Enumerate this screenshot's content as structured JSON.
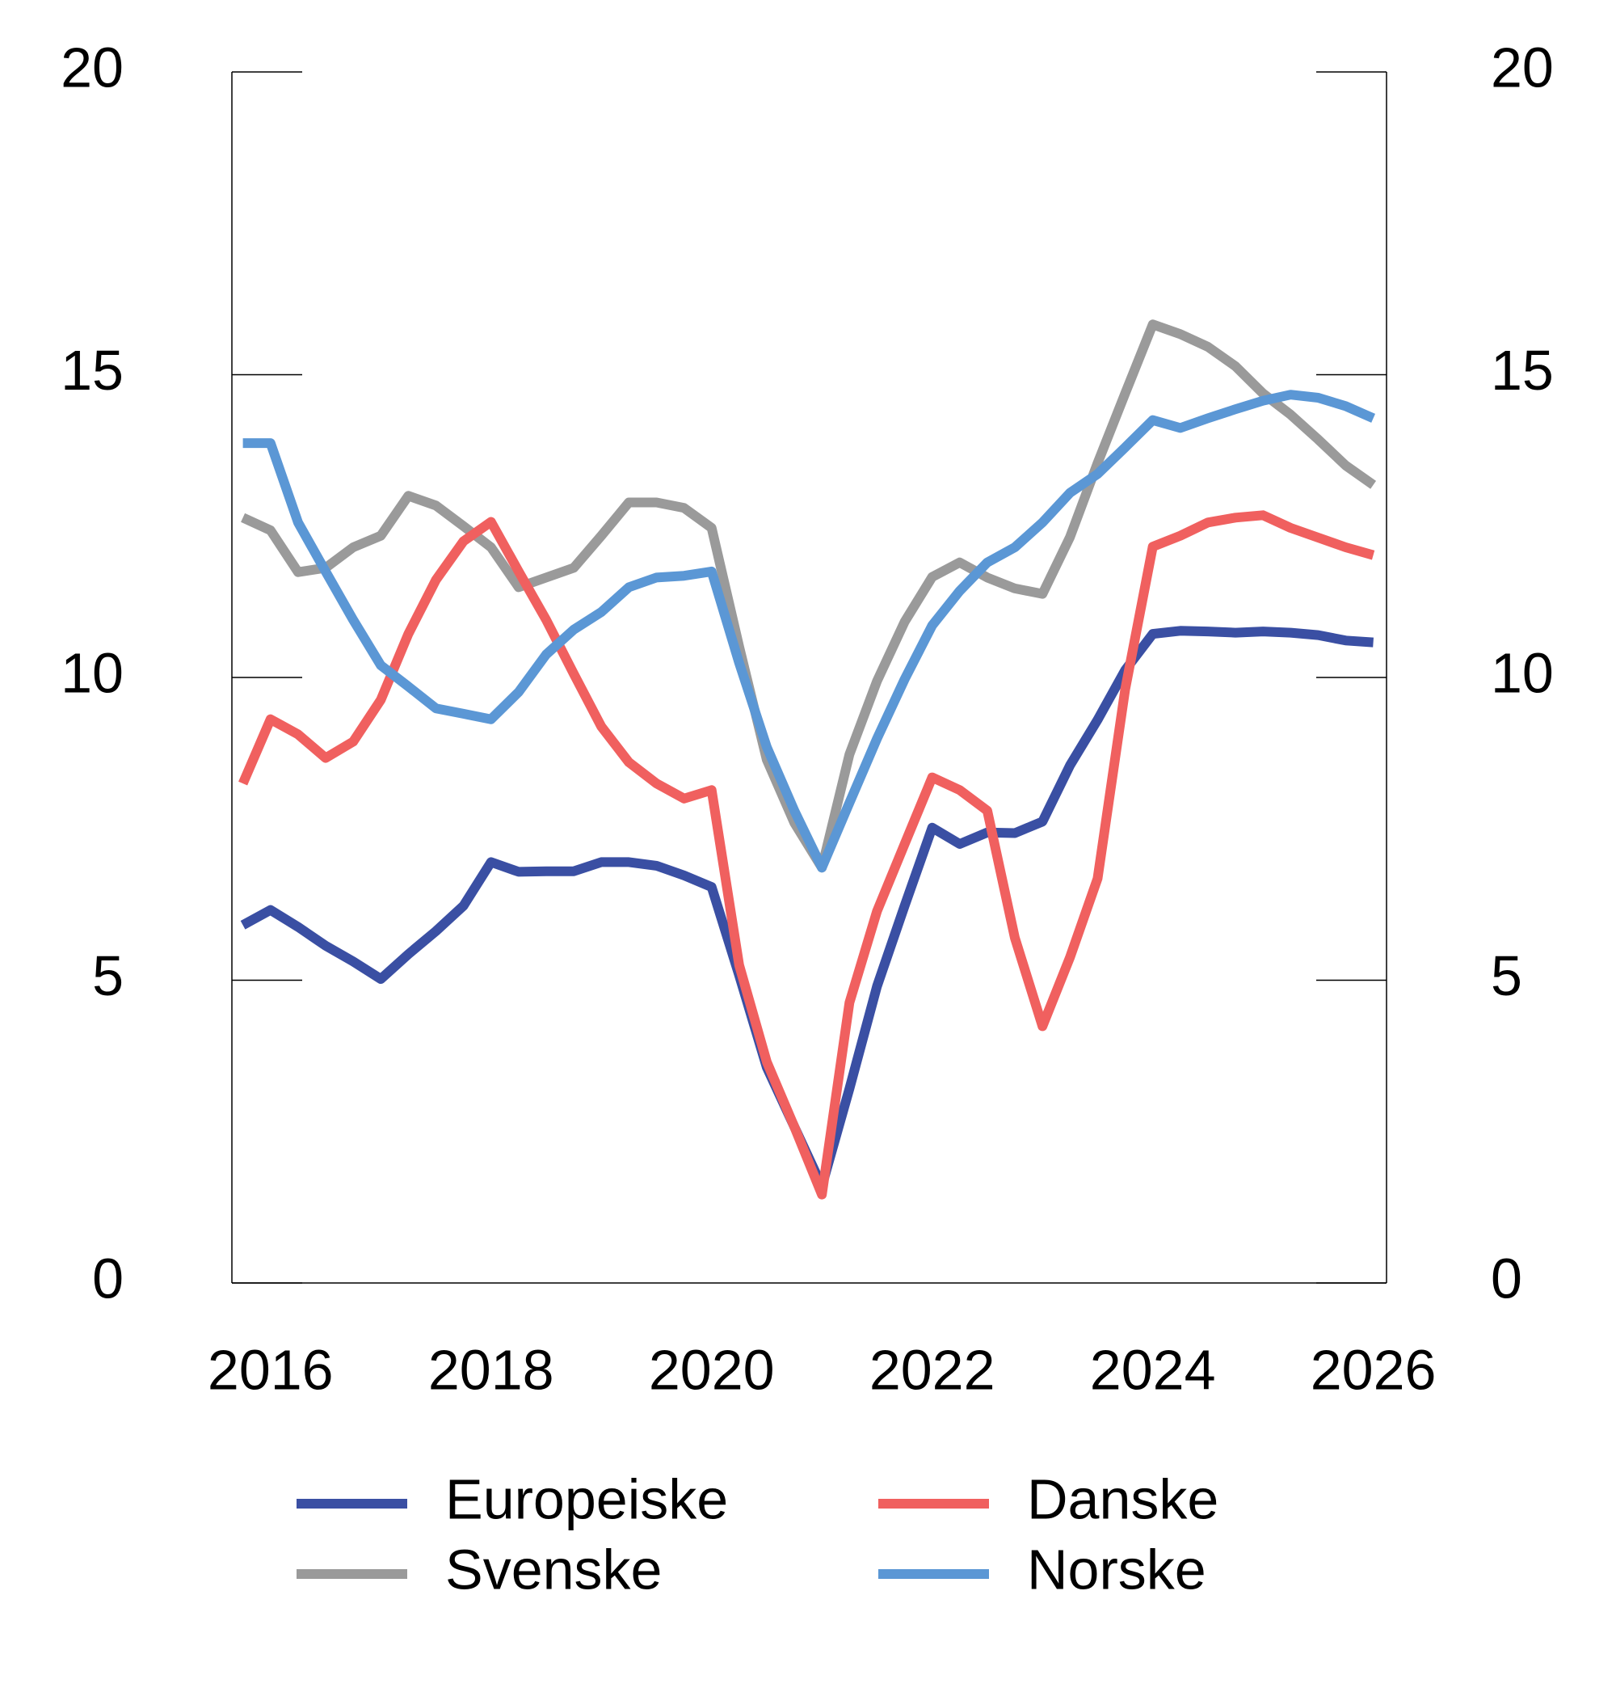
{
  "chart_data": {
    "type": "line",
    "x": [
      2015.75,
      2016,
      2016.25,
      2016.5,
      2016.75,
      2017,
      2017.25,
      2017.5,
      2017.75,
      2018,
      2018.25,
      2018.5,
      2018.75,
      2019,
      2019.25,
      2019.5,
      2019.75,
      2020,
      2020.25,
      2020.5,
      2020.75,
      2021,
      2021.25,
      2021.5,
      2021.75,
      2022,
      2022.25,
      2022.5,
      2022.75,
      2023,
      2023.25,
      2023.5,
      2023.75,
      2024,
      2024.25,
      2024.5,
      2024.75,
      2025,
      2025.25,
      2025.5,
      2025.75,
      2026
    ],
    "series": [
      {
        "name": "Europeiske",
        "color": "#3a4fa3",
        "values": [
          5.91,
          6.16,
          5.88,
          5.57,
          5.31,
          5.02,
          5.43,
          5.81,
          6.23,
          6.95,
          6.79,
          6.8,
          6.8,
          6.95,
          6.95,
          6.89,
          6.73,
          6.54,
          5.08,
          3.56,
          2.58,
          1.6,
          3.21,
          4.9,
          6.23,
          7.52,
          7.25,
          7.44,
          7.43,
          7.62,
          8.55,
          9.3,
          10.12,
          10.72,
          10.77,
          10.76,
          10.74,
          10.76,
          10.74,
          10.7,
          10.61,
          10.58
        ]
      },
      {
        "name": "Svenske",
        "color": "#9a9a9a",
        "values": [
          12.64,
          12.43,
          11.74,
          11.81,
          12.15,
          12.34,
          13.0,
          12.84,
          12.5,
          12.15,
          11.49,
          11.65,
          11.81,
          12.34,
          12.89,
          12.89,
          12.8,
          12.47,
          10.51,
          8.64,
          7.6,
          6.86,
          8.73,
          9.94,
          10.92,
          11.66,
          11.9,
          11.65,
          11.47,
          11.38,
          12.32,
          13.54,
          14.69,
          15.83,
          15.67,
          15.46,
          15.14,
          14.69,
          14.34,
          13.93,
          13.5,
          13.18
        ]
      },
      {
        "name": "Danske",
        "color": "#f0605f",
        "values": [
          8.25,
          9.31,
          9.06,
          8.67,
          8.94,
          9.63,
          10.72,
          11.61,
          12.25,
          12.57,
          11.75,
          10.95,
          10.06,
          9.19,
          8.6,
          8.25,
          8.0,
          8.14,
          5.25,
          3.65,
          2.58,
          1.46,
          4.63,
          6.14,
          7.25,
          8.35,
          8.14,
          7.8,
          5.7,
          4.24,
          5.38,
          6.68,
          9.8,
          12.16,
          12.34,
          12.56,
          12.64,
          12.68,
          12.47,
          12.31,
          12.15,
          12.02
        ]
      },
      {
        "name": "Norske",
        "color": "#5b97d5",
        "values": [
          13.87,
          13.87,
          12.56,
          11.75,
          10.95,
          10.2,
          9.85,
          9.49,
          9.4,
          9.31,
          9.76,
          10.38,
          10.79,
          11.08,
          11.49,
          11.65,
          11.68,
          11.75,
          10.24,
          8.85,
          7.8,
          6.86,
          7.93,
          8.99,
          9.97,
          10.86,
          11.43,
          11.9,
          12.15,
          12.56,
          13.05,
          13.36,
          13.8,
          14.25,
          14.12,
          14.28,
          14.43,
          14.57,
          14.67,
          14.62,
          14.48,
          14.28
        ]
      }
    ],
    "xlim": [
      2015.65,
      2026.12
    ],
    "xticks": [
      2016,
      2018,
      2020,
      2022,
      2024,
      2026
    ],
    "ylim": [
      0,
      20
    ],
    "yticks": [
      0,
      5,
      10,
      15,
      20
    ],
    "y2lim": [
      0,
      20
    ],
    "y2ticks": [
      0,
      5,
      10,
      15,
      20
    ]
  }
}
